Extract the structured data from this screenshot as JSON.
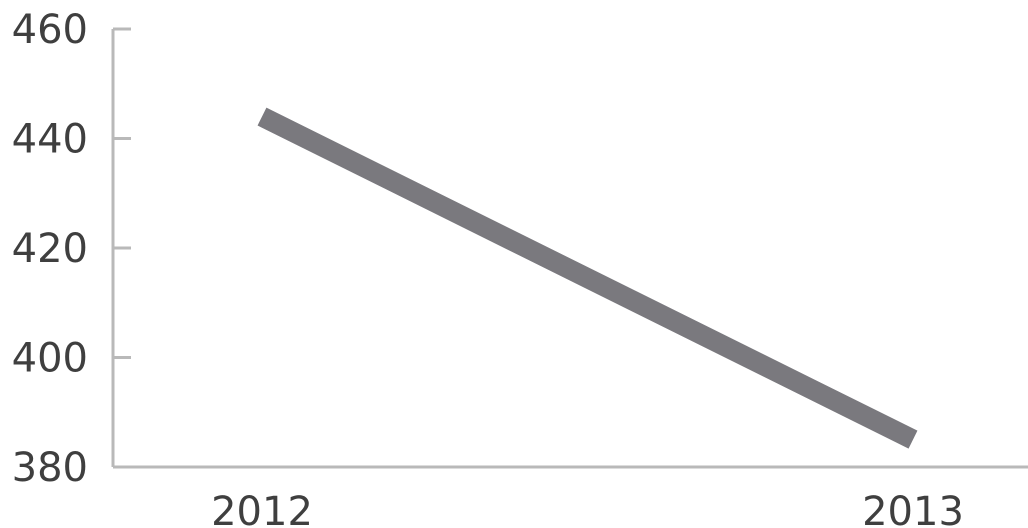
{
  "chart_data": {
    "type": "line",
    "title": "",
    "xlabel": "",
    "ylabel": "",
    "categories": [
      "2012",
      "2013"
    ],
    "series": [
      {
        "values": [
          444,
          385
        ]
      }
    ],
    "ylim": [
      380,
      460
    ],
    "yticks": [
      460,
      440,
      420,
      400,
      380
    ],
    "grid": false,
    "legend": "none",
    "colors": {
      "series": "#7a797e",
      "axis": "#b9b9b9",
      "text": "#3f3f3f"
    }
  }
}
